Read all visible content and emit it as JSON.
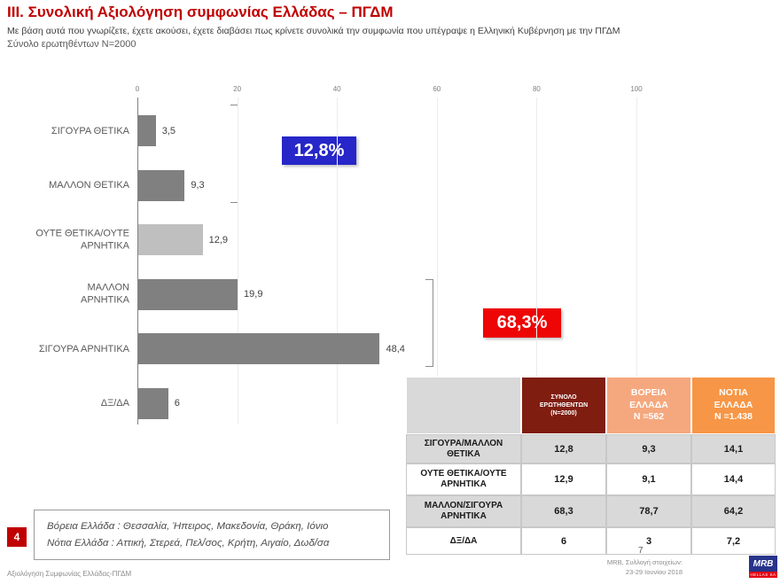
{
  "header": {
    "title": "III. Συνολική Αξιολόγηση συμφωνίας Ελλάδας – ΠΓΔΜ",
    "subtitle": "Με βάση αυτά που γνωρίζετε, έχετε ακούσει, έχετε διαβάσει πως κρίνετε συνολικά την συμφωνία που υπέγραψε η Ελληνική Κυβέρνηση με την ΠΓΔΜ",
    "sample": "Σύνολο ερωτηθέντων N=2000"
  },
  "chart_data": {
    "type": "bar",
    "orientation": "horizontal",
    "title": "",
    "xlabel": "",
    "ylabel": "",
    "categories": [
      "ΣΙΓΟΥΡΑ ΘΕΤΙΚΑ",
      "ΜΑΛΛΟΝ ΘΕΤΙΚΑ",
      "ΟΥΤΕ ΘΕΤΙΚΑ/ΟΥΤΕ\nΑΡΝΗΤΙΚΑ",
      "ΜΑΛΛΟΝ\nΑΡΝΗΤΙΚΑ",
      "ΣΙΓΟΥΡΑ ΑΡΝΗΤΙΚΑ",
      "ΔΞ/ΔΑ"
    ],
    "values": [
      3.5,
      9.3,
      12.9,
      19.9,
      48.4,
      6
    ],
    "value_labels": [
      "3,5",
      "9,3",
      "12,9",
      "19,9",
      "48,4",
      "6"
    ],
    "light_bar_indexes": [
      2
    ],
    "xlim": [
      0,
      100
    ],
    "x_ticks": [
      0,
      20,
      40,
      60,
      80,
      100
    ],
    "grid": true,
    "legend": "none",
    "annotations": {
      "positive_total": {
        "label": "12,8%",
        "meaning": "sum of positive answers"
      },
      "negative_total": {
        "label": "68,3%",
        "meaning": "sum of negative answers"
      }
    }
  },
  "table": {
    "headers": {
      "corner": "",
      "total": "ΣΥΝΟΛΟ\nΕΡΩΤΗΘΕΝΤΩΝ\n(Ν=2000)",
      "north": "ΒΟΡΕΙΑ\nΕΛΛΑΔΑ\nΝ =562",
      "south": "ΝΟΤΙΑ\nΕΛΛΑΔΑ\nΝ =1.438"
    },
    "rows": [
      {
        "label": "ΣΙΓΟΥΡΑ/ΜΑΛΛΟΝ\nΘΕΤΙΚΑ",
        "values": [
          "12,8",
          "9,3",
          "14,1"
        ]
      },
      {
        "label": "ΟΥΤΕ ΘΕΤΙΚΑ/ΟΥΤΕ\nΑΡΝΗΤΙΚΑ",
        "values": [
          "12,9",
          "9,1",
          "14,4"
        ]
      },
      {
        "label": "ΜΑΛΛΟΝ/ΣΙΓΟΥΡΑ\nΑΡΝΗΤΙΚΑ",
        "values": [
          "68,3",
          "78,7",
          "64,2"
        ]
      },
      {
        "label": "ΔΞ/ΔΑ",
        "values": [
          "6",
          "3",
          "7,2"
        ]
      }
    ]
  },
  "note": {
    "number": "4",
    "line1": "Βόρεια Ελλάδα : Θεσσαλία, Ήπειρος, Μακεδονία, Θράκη, Ιόνιο",
    "line2": "Νότια Ελλάδα : Αττική, Στερεά, Πελ/σος, Κρήτη, Αιγαίο, Δωδ/σα"
  },
  "footer": {
    "left": "Αξιολόγηση Συμφωνίας Ελλάδας-ΠΓΔΜ",
    "page": "7",
    "source_line1": "MRB, Συλλογή στοιχείων:",
    "source_line2": "23-29 Ιουνίου 2018",
    "logo_text": "MRB",
    "logo_sub": "HELLAS SA"
  },
  "colors": {
    "title": "#C00000",
    "bar": "#808080",
    "bar_light": "#BFBFBF",
    "positive_box": "#2626C9",
    "negative_box": "#EE0505",
    "table_total_header": "#7F1D10",
    "table_north_header": "#F5A87E",
    "table_south_header": "#F79646",
    "row_stripe": "#D9D9D9",
    "note_badge": "#C00000",
    "logo_blue": "#27348B",
    "logo_red": "#E30613"
  }
}
